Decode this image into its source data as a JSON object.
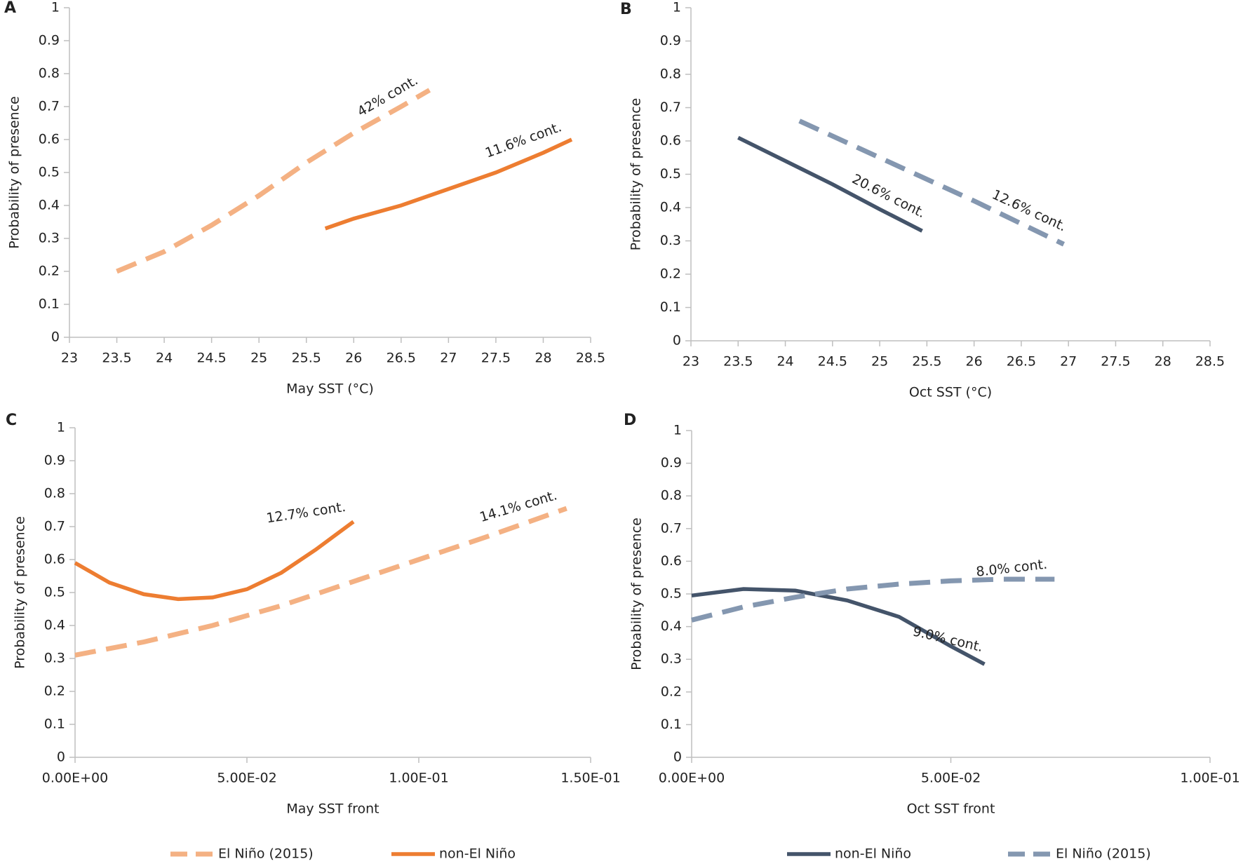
{
  "chart_data": [
    {
      "type": "line",
      "panel": "A",
      "xlabel": "May SST (°C)",
      "ylabel": "Probability of presence",
      "xlim": [
        23,
        28.5
      ],
      "xticks": [
        23,
        23.5,
        24,
        24.5,
        25,
        25.5,
        26,
        26.5,
        27,
        27.5,
        28,
        28.5
      ],
      "ylim": [
        0,
        1
      ],
      "yticks": [
        0,
        0.1,
        0.2,
        0.3,
        0.4,
        0.5,
        0.6,
        0.7,
        0.8,
        0.9,
        1
      ],
      "series": [
        {
          "color": "#f4b183",
          "dash": true,
          "label": "42% cont.",
          "x": [
            23.5,
            24,
            24.5,
            25,
            25.5,
            26,
            26.5,
            26.8
          ],
          "values": [
            0.2,
            0.26,
            0.34,
            0.43,
            0.53,
            0.62,
            0.7,
            0.75
          ]
        },
        {
          "color": "#ed7d31",
          "dash": false,
          "label": "11.6% cont.",
          "x": [
            25.7,
            26,
            26.5,
            27,
            27.5,
            28,
            28.3
          ],
          "values": [
            0.33,
            0.36,
            0.4,
            0.45,
            0.5,
            0.56,
            0.6
          ]
        }
      ]
    },
    {
      "type": "line",
      "panel": "B",
      "xlabel": "Oct SST (°C)",
      "ylabel": "Probability of presence",
      "xlim": [
        23,
        28.5
      ],
      "xticks": [
        23,
        23.5,
        24,
        24.5,
        25,
        25.5,
        26,
        26.5,
        27,
        27.5,
        28,
        28.5
      ],
      "ylim": [
        0,
        1
      ],
      "yticks": [
        0,
        0.1,
        0.2,
        0.3,
        0.4,
        0.5,
        0.6,
        0.7,
        0.8,
        0.9,
        1
      ],
      "series": [
        {
          "color": "#44546a",
          "dash": false,
          "label": "20.6% cont.",
          "x": [
            23.5,
            24,
            24.5,
            25,
            25.45
          ],
          "values": [
            0.61,
            0.54,
            0.47,
            0.395,
            0.33
          ]
        },
        {
          "color": "#8497b0",
          "dash": true,
          "label": "12.6% cont.",
          "x": [
            24.15,
            25,
            26,
            26.95
          ],
          "values": [
            0.66,
            0.55,
            0.42,
            0.29
          ]
        }
      ]
    },
    {
      "type": "line",
      "panel": "C",
      "xlabel": "May SST front",
      "ylabel": "Probability of presence",
      "xlim": [
        0,
        0.15
      ],
      "xticks": [
        {
          "value": 0,
          "label": "0.00E+00"
        },
        {
          "value": 0.05,
          "label": "5.00E-02"
        },
        {
          "value": 0.1,
          "label": "1.00E-01"
        },
        {
          "value": 0.15,
          "label": "1.50E-01"
        }
      ],
      "ylim": [
        0,
        1
      ],
      "yticks": [
        0,
        0.1,
        0.2,
        0.3,
        0.4,
        0.5,
        0.6,
        0.7,
        0.8,
        0.9,
        1
      ],
      "series": [
        {
          "name": "El Niño (2015)",
          "color": "#f4b183",
          "dash": true,
          "label": "14.1% cont.",
          "x": [
            0,
            0.02,
            0.04,
            0.06,
            0.08,
            0.1,
            0.12,
            0.143
          ],
          "values": [
            0.31,
            0.35,
            0.4,
            0.46,
            0.53,
            0.6,
            0.67,
            0.755
          ]
        },
        {
          "name": "non-El Niño",
          "color": "#ed7d31",
          "dash": false,
          "label": "12.7% cont.",
          "x": [
            0,
            0.01,
            0.02,
            0.03,
            0.04,
            0.05,
            0.06,
            0.07,
            0.081
          ],
          "values": [
            0.59,
            0.53,
            0.495,
            0.48,
            0.485,
            0.51,
            0.56,
            0.63,
            0.715
          ]
        }
      ]
    },
    {
      "type": "line",
      "panel": "D",
      "xlabel": "Oct SST front",
      "ylabel": "Probability of presence",
      "xlim": [
        0,
        0.1
      ],
      "xticks": [
        {
          "value": 0,
          "label": "0.00E+00"
        },
        {
          "value": 0.05,
          "label": "5.00E-02"
        },
        {
          "value": 0.1,
          "label": "1.00E-01"
        }
      ],
      "ylim": [
        0,
        1
      ],
      "yticks": [
        0,
        0.1,
        0.2,
        0.3,
        0.4,
        0.5,
        0.6,
        0.7,
        0.8,
        0.9,
        1
      ],
      "series": [
        {
          "name": "non-El Niño",
          "color": "#44546a",
          "dash": false,
          "label": "9.0% cont.",
          "x": [
            0,
            0.01,
            0.02,
            0.03,
            0.04,
            0.05,
            0.0565
          ],
          "values": [
            0.495,
            0.515,
            0.51,
            0.48,
            0.43,
            0.34,
            0.285
          ]
        },
        {
          "name": "El Niño (2015)",
          "color": "#8497b0",
          "dash": true,
          "label": "8.0% cont.",
          "x": [
            0,
            0.01,
            0.02,
            0.03,
            0.04,
            0.05,
            0.06,
            0.07
          ],
          "values": [
            0.42,
            0.46,
            0.49,
            0.515,
            0.53,
            0.54,
            0.545,
            0.545
          ]
        }
      ]
    }
  ]
}
